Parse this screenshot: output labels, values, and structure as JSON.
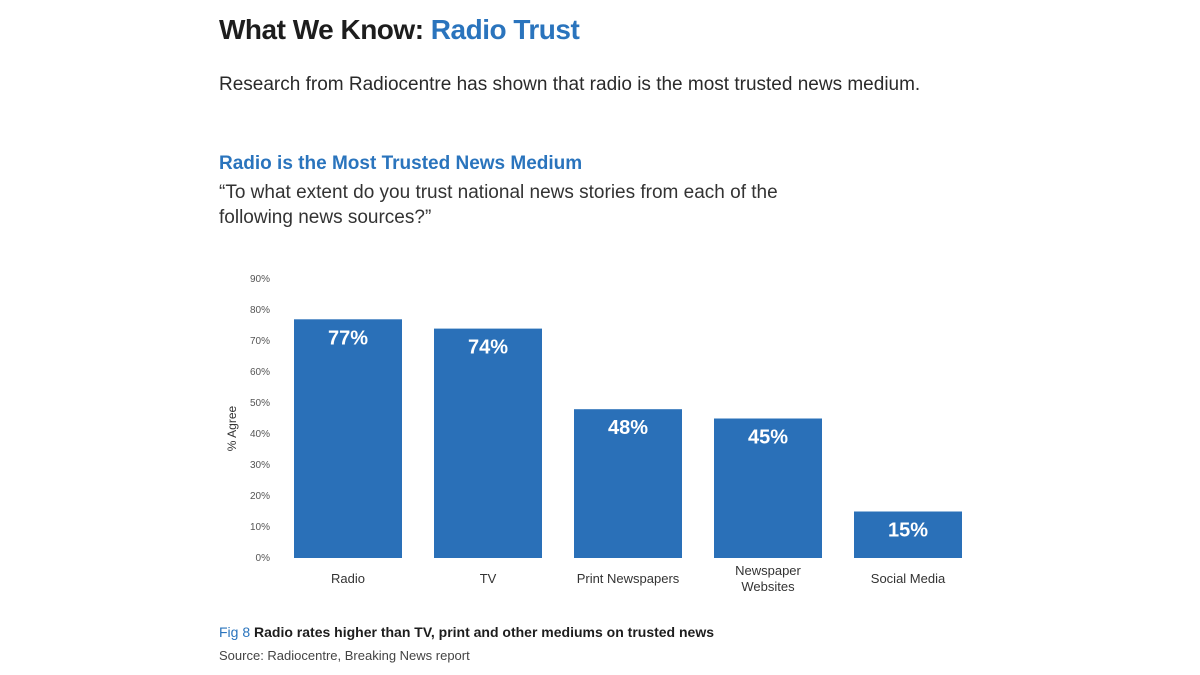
{
  "heading": {
    "lead": "What We Know:",
    "accent": "Radio Trust"
  },
  "intro": "Research from Radiocentre has shown that radio is the most trusted news medium.",
  "chart_title": "Radio is the Most Trusted News Medium",
  "question": "“To what extent do you trust national news stories from each of the following news sources?”",
  "colors": {
    "bar": "#2a70b8",
    "accent": "#2a74bd"
  },
  "chart_data": {
    "type": "bar",
    "title": "Radio is the Most Trusted News Medium",
    "subtitle": "“To what extent do you trust national news stories from each of the following news sources?”",
    "categories": [
      "Radio",
      "TV",
      "Print Newspapers",
      "Newspaper Websites",
      "Social Media"
    ],
    "category_lines": [
      [
        "Radio"
      ],
      [
        "TV"
      ],
      [
        "Print Newspapers"
      ],
      [
        "Newspaper",
        "Websites"
      ],
      [
        "Social Media"
      ]
    ],
    "values": [
      77,
      74,
      48,
      45,
      15
    ],
    "data_labels": [
      "77%",
      "74%",
      "48%",
      "45%",
      "15%"
    ],
    "xlabel": "",
    "ylabel": "% Agree",
    "ylim": [
      0,
      90
    ],
    "yticks": [
      0,
      10,
      20,
      30,
      40,
      50,
      60,
      70,
      80,
      90
    ],
    "ytick_labels": [
      "0%",
      "10%",
      "20%",
      "30%",
      "40%",
      "50%",
      "60%",
      "70%",
      "80%",
      "90%"
    ],
    "grid": false,
    "legend": "none"
  },
  "caption": {
    "fig_num": "Fig 8",
    "text": "Radio rates higher than TV, print and other mediums on trusted news"
  },
  "source": "Source: Radiocentre, Breaking News report"
}
